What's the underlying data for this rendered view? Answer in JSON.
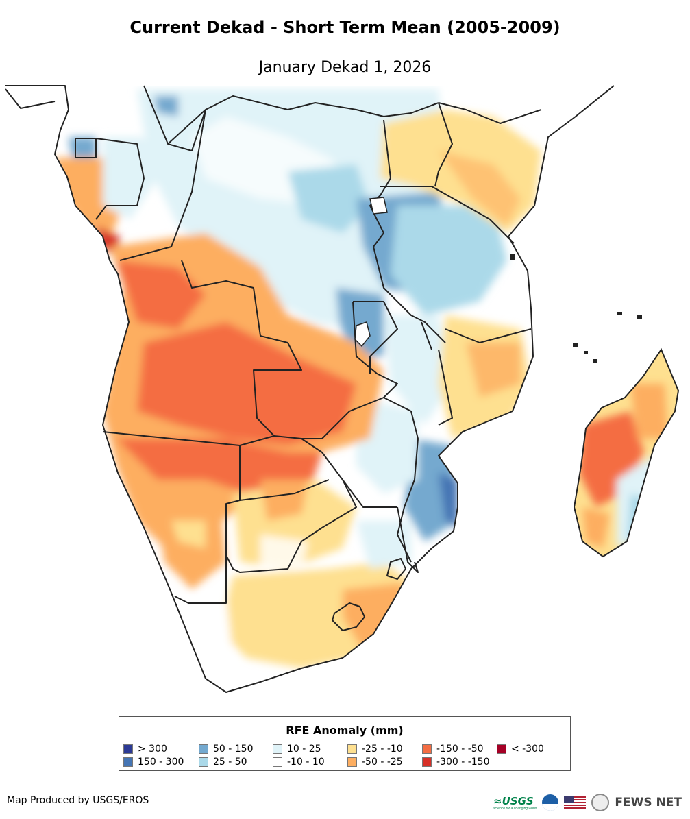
{
  "title": "Current Dekad - Short Term Mean (2005-2009)",
  "subtitle": "January Dekad 1, 2026",
  "legend": {
    "title": "RFE Anomaly (mm)",
    "items": [
      {
        "label": "> 300",
        "color": "#2c3a95"
      },
      {
        "label": "150 - 300",
        "color": "#4575b4"
      },
      {
        "label": "50 - 150",
        "color": "#74a9cf"
      },
      {
        "label": "25 - 50",
        "color": "#abd9e9"
      },
      {
        "label": "10 - 25",
        "color": "#e0f3f8"
      },
      {
        "label": "-10 - 10",
        "color": "#ffffff"
      },
      {
        "label": "-25 - -10",
        "color": "#fee090"
      },
      {
        "label": "-50 - -25",
        "color": "#fdae61"
      },
      {
        "label": "-150 - -50",
        "color": "#f46d43"
      },
      {
        "label": "-300 - -150",
        "color": "#d73027"
      },
      {
        "label": "< -300",
        "color": "#a50026"
      }
    ]
  },
  "credit": "Map Produced by USGS/EROS",
  "logos": {
    "usgs": "≈USGS",
    "usgs_tagline": "science for a changing world",
    "fews": "FEWS NET"
  },
  "colors": {
    "border": "#222222",
    "water": "#ffffff"
  }
}
